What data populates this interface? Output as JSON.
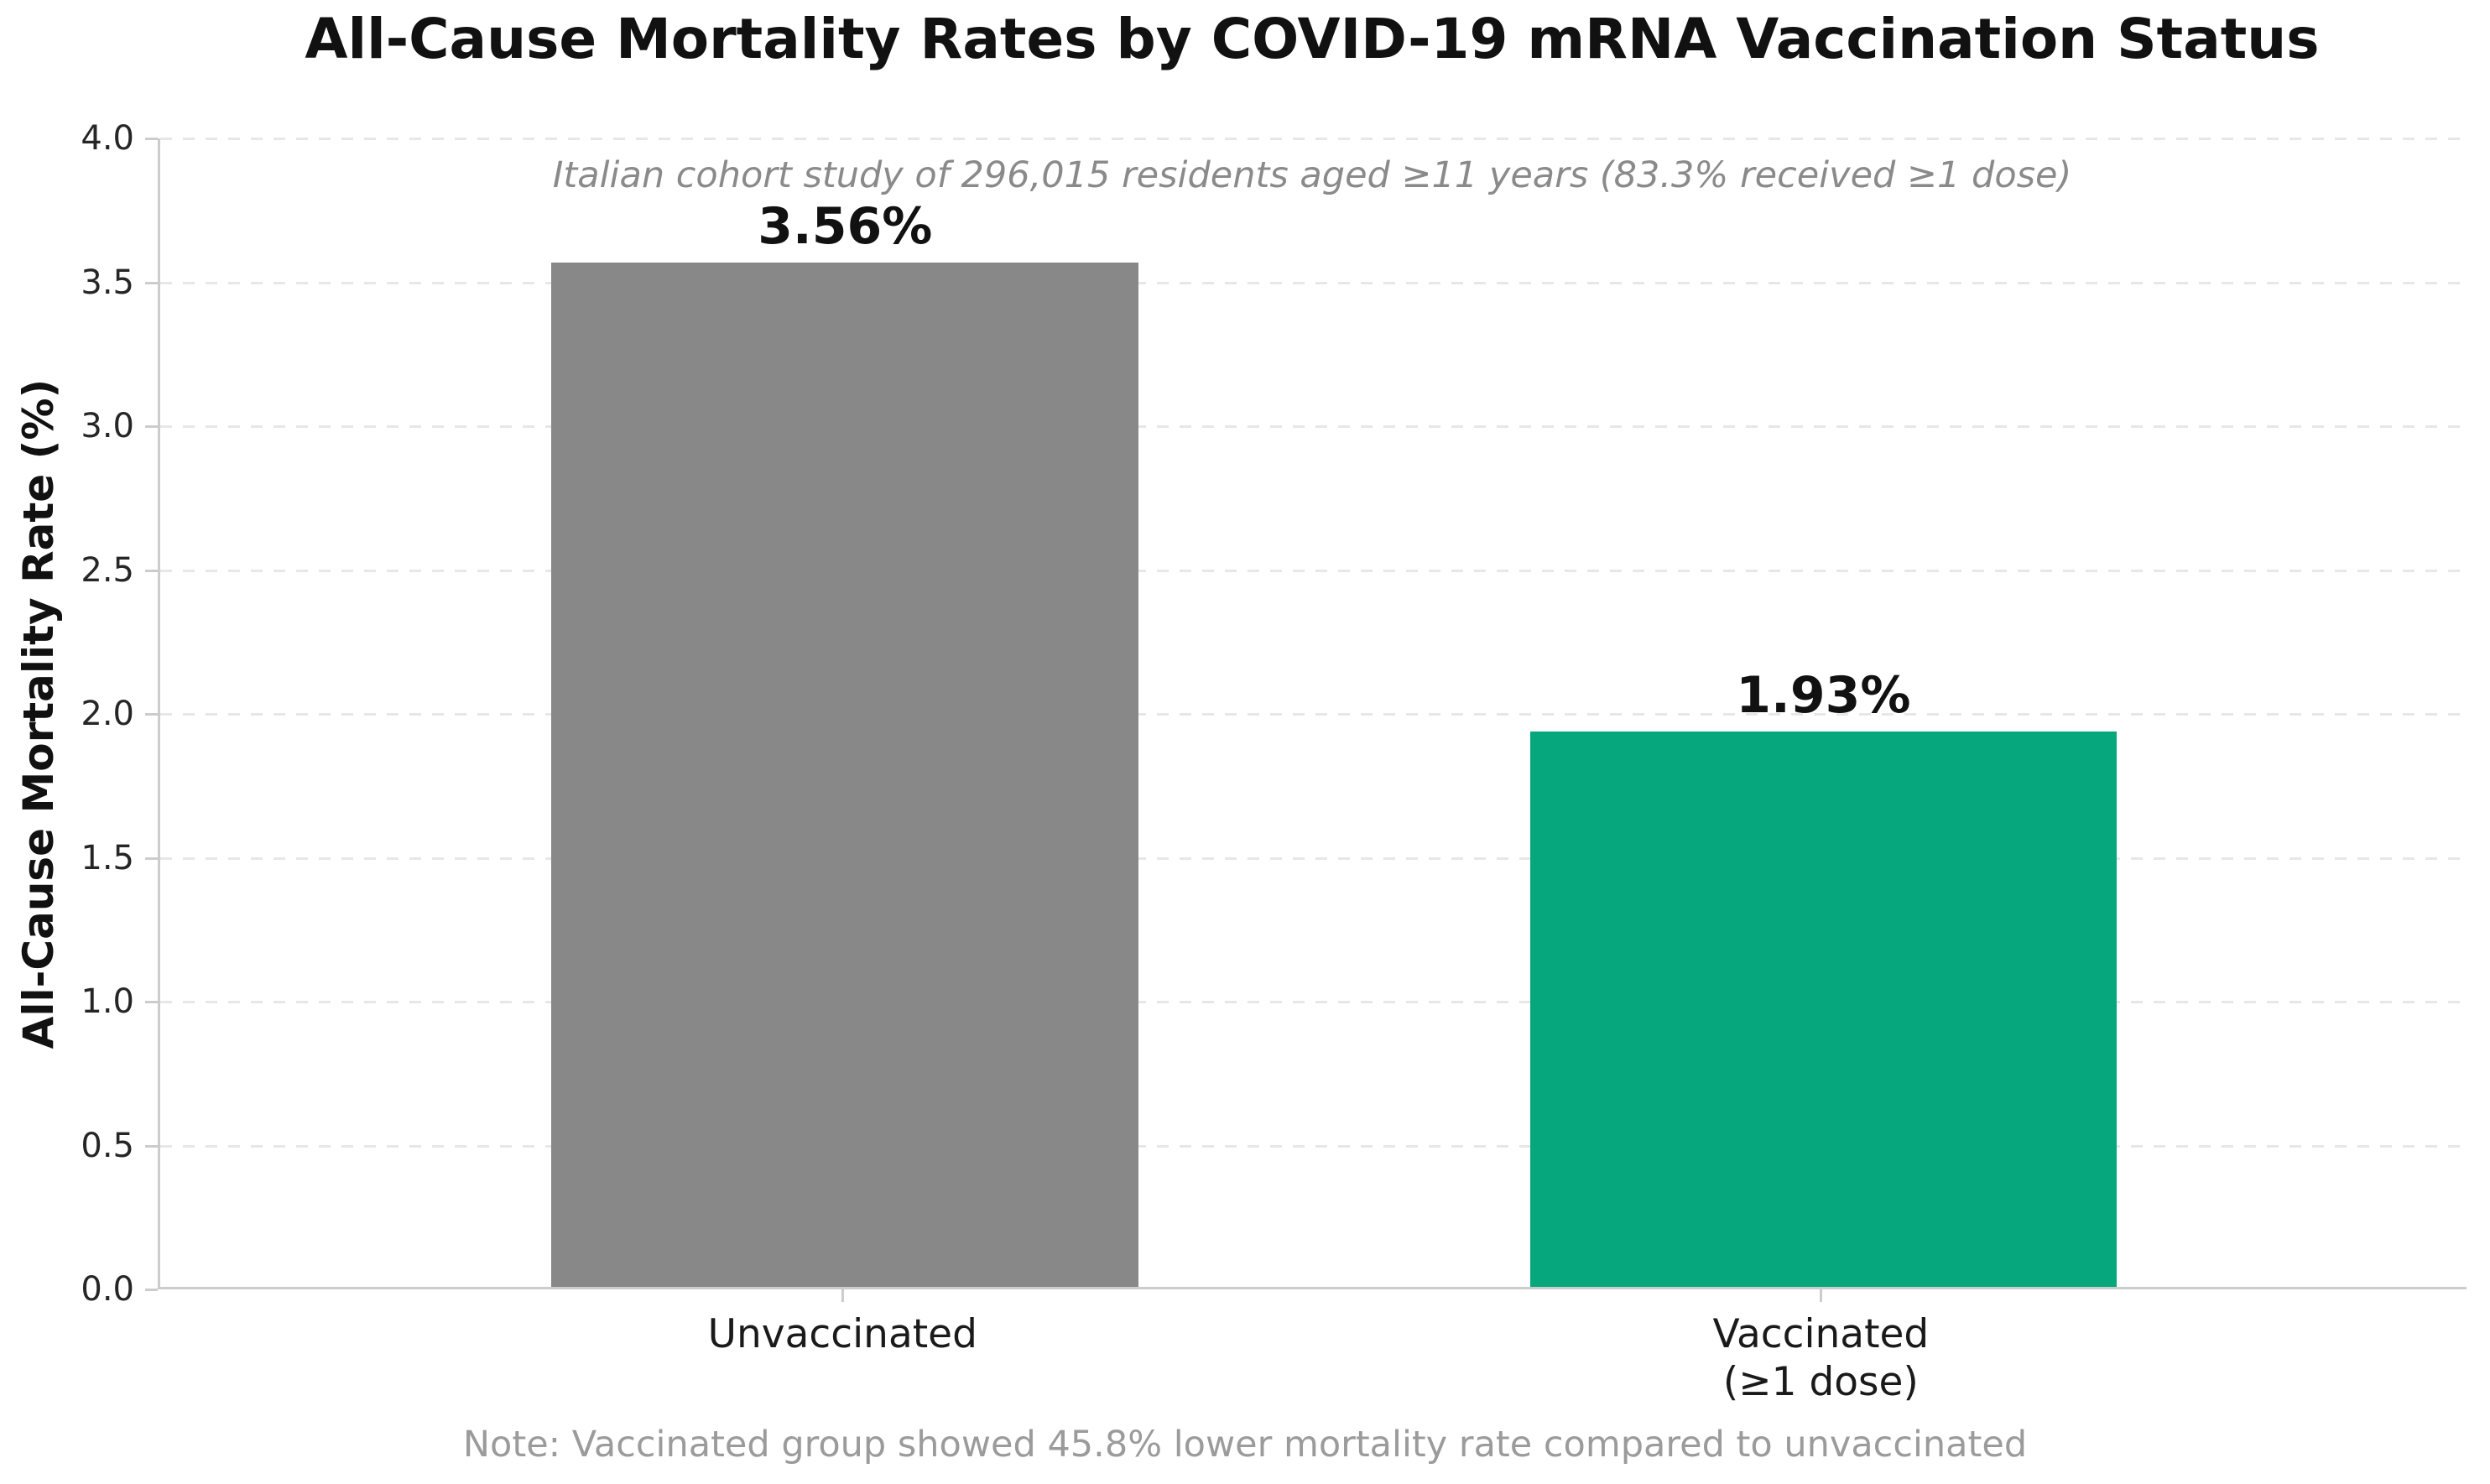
{
  "chart_data": {
    "type": "bar",
    "title": "All-Cause Mortality Rates by COVID-19 mRNA Vaccination Status",
    "subtitle": "Italian cohort study of 296,015 residents aged ≥11 years (83.3% received ≥1 dose)",
    "note": "Note: Vaccinated group showed 45.8% lower mortality rate compared to unvaccinated",
    "ylabel": "All-Cause Mortality Rate (%)",
    "xlabel": "",
    "categories": [
      "Unvaccinated",
      "Vaccinated\n(≥1 dose)"
    ],
    "values": [
      3.56,
      1.93
    ],
    "value_labels": [
      "3.56%",
      "1.93%"
    ],
    "bar_colors": [
      "#888888",
      "#07a77e"
    ],
    "ylim": [
      0,
      4.0
    ],
    "yticks": [
      0.0,
      0.5,
      1.0,
      1.5,
      2.0,
      2.5,
      3.0,
      3.5,
      4.0
    ],
    "ytick_labels": [
      "0.0",
      "0.5",
      "1.0",
      "1.5",
      "2.0",
      "2.5",
      "3.0",
      "3.5",
      "4.0"
    ],
    "xlim": [
      -0.7,
      1.66
    ],
    "bar_width_data_units": 0.6,
    "grid": "horizontal-dashed",
    "legend": "none",
    "colors": {
      "grid": "#e7e7e7",
      "spine": "#cccccc",
      "title_text": "#111111",
      "subtitle_text": "#8a8a8a",
      "note_text": "#9b9b9b",
      "tick_text": "#262626"
    }
  }
}
